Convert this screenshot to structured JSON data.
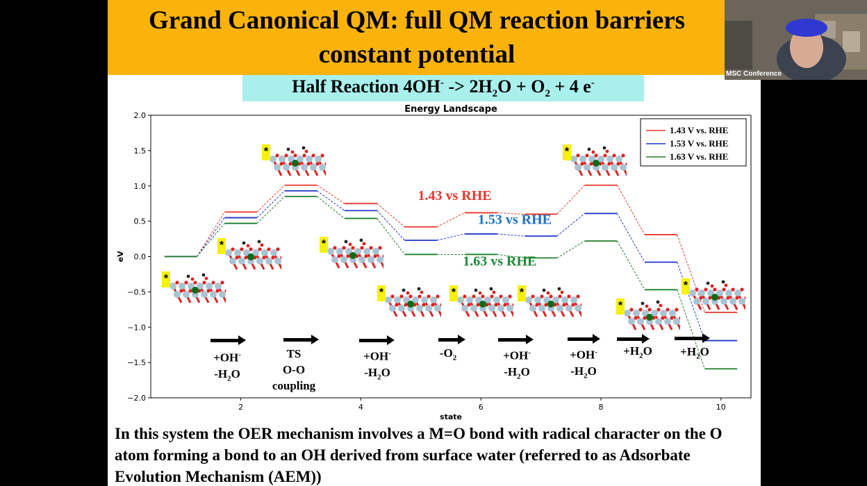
{
  "title": {
    "line1": "Grand Canonical QM: full QM reaction barriers",
    "line2": "constant potential"
  },
  "half_reaction": {
    "prefix": "Half Reaction 4OH",
    "sup1": "-",
    "mid1": " -> 2H",
    "sub1": "2",
    "mid2": "O + O",
    "sub2": "2",
    "mid3": " + 4 e",
    "sup2": "-"
  },
  "video": {
    "label": "MSC Conference"
  },
  "chart_data": {
    "type": "line",
    "title": "Energy Landscape",
    "xlabel": "state",
    "ylabel": "eV",
    "xlim": [
      0.5,
      10.5
    ],
    "ylim": [
      -2.0,
      2.0
    ],
    "xticks": [
      2,
      4,
      6,
      8,
      10
    ],
    "yticks": [
      -2.0,
      -1.5,
      -1.0,
      -0.5,
      0.0,
      0.5,
      1.0,
      1.5,
      2.0
    ],
    "ytick_labels": [
      "−2.0",
      "−1.5",
      "−1.0",
      "−0.5",
      "0.0",
      "0.5",
      "1.0",
      "1.5",
      "2.0"
    ],
    "grid": false,
    "legend_position": "top-right",
    "states": [
      1,
      2,
      3,
      4,
      5,
      6,
      7,
      8,
      9,
      10
    ],
    "series": [
      {
        "name": "1.43 V vs. RHE",
        "color": "#e8352b",
        "values": [
          0.0,
          0.63,
          1.01,
          0.75,
          0.42,
          0.62,
          0.6,
          1.01,
          0.31,
          -0.79
        ]
      },
      {
        "name": "1.53 V vs. RHE",
        "color": "#1f35c9",
        "values": [
          0.0,
          0.55,
          0.93,
          0.65,
          0.23,
          0.32,
          0.29,
          0.61,
          -0.08,
          -1.19
        ]
      },
      {
        "name": "1.63 V vs. RHE",
        "color": "#1e7d2b",
        "values": [
          0.0,
          0.47,
          0.85,
          0.54,
          0.03,
          0.03,
          -0.02,
          0.22,
          -0.47,
          -1.59
        ]
      }
    ],
    "annotations": [
      {
        "text": "1.43 vs RHE",
        "color": "#e8352b"
      },
      {
        "text": "1.53 vs RHE",
        "color": "#1c6fc4"
      },
      {
        "text": "1.63 vs RHE",
        "color": "#1e8a3a"
      }
    ],
    "steps": [
      {
        "lines": [
          "+OH-",
          "-H2O"
        ]
      },
      {
        "lines": [
          "TS",
          "O-O",
          "coupling"
        ]
      },
      {
        "lines": [
          "+OH-",
          "-H2O"
        ]
      },
      {
        "lines": [
          "-O2"
        ]
      },
      {
        "lines": [
          "+OH-",
          "-H2O"
        ]
      },
      {
        "lines": [
          "+OH-",
          "-H2O"
        ]
      },
      {
        "lines": [
          "+H2O"
        ]
      },
      {
        "lines": [
          "+H2O"
        ]
      }
    ],
    "structure_labels": [
      "*",
      "*",
      "*",
      "*",
      "*",
      "*",
      "*",
      "*",
      "*",
      "*"
    ]
  },
  "bottom_text": "In this system the OER mechanism involves a M=O bond with radical character on the O atom forming a bond to an OH derived from surface water (referred to as Adsorbate Evolution Mechanism (AEM))"
}
